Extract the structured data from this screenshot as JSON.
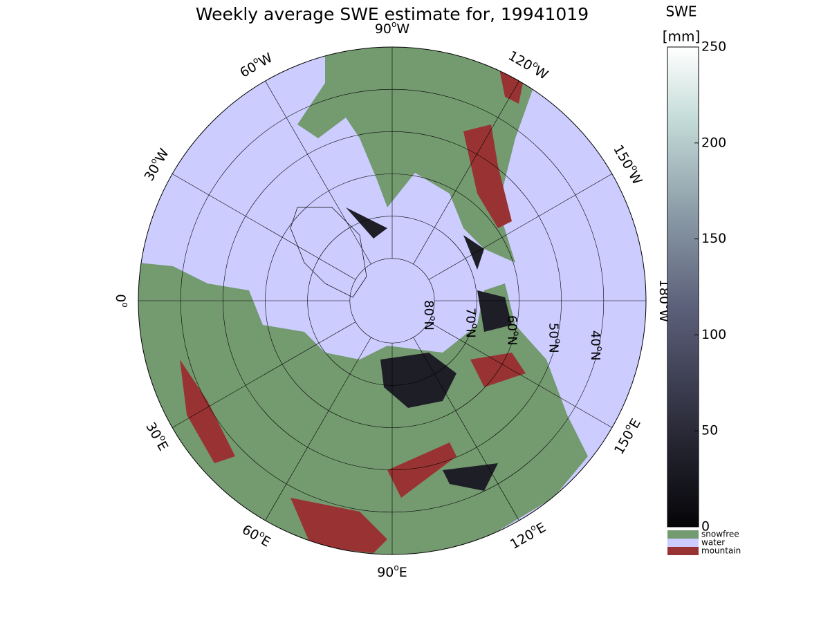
{
  "title": "Weekly average SWE estimate for, 19941019",
  "map": {
    "degree_mark": "o",
    "longitudes": [
      {
        "deg": 0
      },
      {
        "deg": 30,
        "dir": "E"
      },
      {
        "deg": 60,
        "dir": "E"
      },
      {
        "deg": 90,
        "dir": "E"
      },
      {
        "deg": 120,
        "dir": "E"
      },
      {
        "deg": 150,
        "dir": "E"
      },
      {
        "deg": 180,
        "dir": "W"
      },
      {
        "deg": 150,
        "dir": "W"
      },
      {
        "deg": 120,
        "dir": "W"
      },
      {
        "deg": 90,
        "dir": "W"
      },
      {
        "deg": 60,
        "dir": "W"
      },
      {
        "deg": 30,
        "dir": "W"
      }
    ],
    "latitudes": [
      {
        "deg": 80,
        "dir": "N"
      },
      {
        "deg": 70,
        "dir": "N"
      },
      {
        "deg": 60,
        "dir": "N"
      },
      {
        "deg": 50,
        "dir": "N"
      },
      {
        "deg": 40,
        "dir": "N"
      }
    ]
  },
  "colorbar": {
    "title": "SWE",
    "unit": "[mm]",
    "lim": [
      0,
      250
    ],
    "ticks": [
      0,
      50,
      100,
      150,
      200,
      250
    ]
  },
  "legend": [
    {
      "label": "snowfree",
      "color": "#749a70"
    },
    {
      "label": "water",
      "color": "#ccccff"
    },
    {
      "label": "mountain",
      "color": "#993333"
    }
  ]
}
